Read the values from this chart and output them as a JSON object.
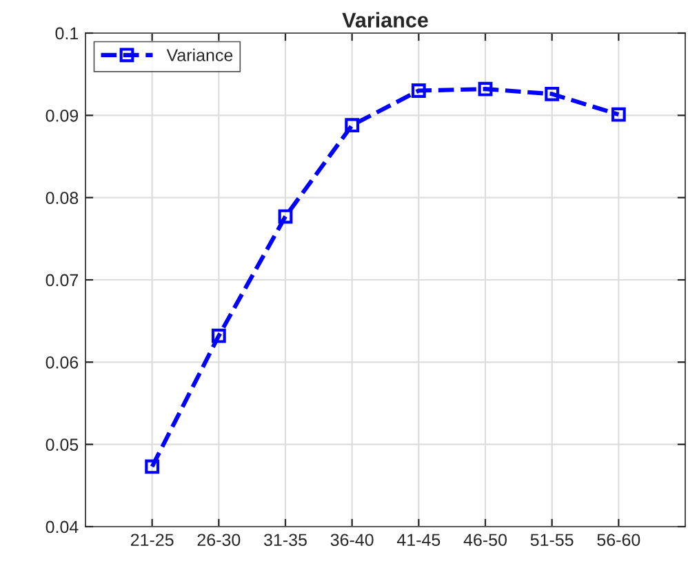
{
  "chart_data": {
    "type": "line",
    "title": "Variance",
    "categories": [
      "21-25",
      "26-30",
      "31-35",
      "36-40",
      "41-45",
      "46-50",
      "51-55",
      "56-60"
    ],
    "series": [
      {
        "name": "Variance",
        "color": "#0000ff",
        "values": [
          0.0473,
          0.0632,
          0.0777,
          0.0888,
          0.093,
          0.0932,
          0.0926,
          0.0901
        ]
      }
    ],
    "ylim": [
      0.04,
      0.1
    ],
    "yticks": [
      0.04,
      0.05,
      0.06,
      0.07,
      0.08,
      0.09,
      0.1
    ],
    "grid": true,
    "legend": "top left",
    "marker": "square",
    "line_style": "dashed"
  }
}
